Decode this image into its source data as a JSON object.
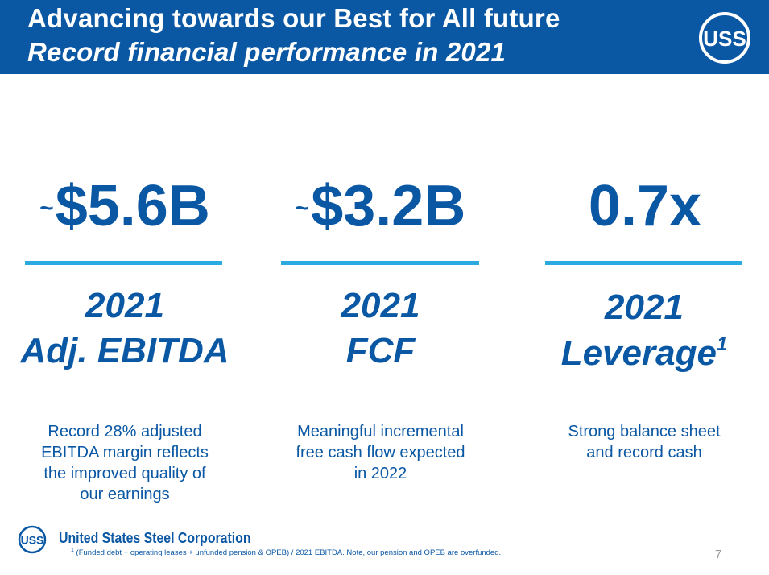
{
  "header": {
    "title_line1": "Advancing towards our Best for All future",
    "title_line2": "Record financial performance in 2021",
    "logo_text": "USS"
  },
  "metrics": [
    {
      "prefix": "~",
      "value": "$5.6B",
      "year": "2021",
      "label": "Adj. EBITDA",
      "footnote_ref": "",
      "description_lines": [
        "Record 28% adjusted",
        "EBITDA margin reflects",
        "the improved quality of",
        "our earnings"
      ]
    },
    {
      "prefix": "~",
      "value": "$3.2B",
      "year": "2021",
      "label": "FCF",
      "footnote_ref": "",
      "description_lines": [
        "Meaningful incremental",
        "free cash flow expected",
        "in 2022"
      ]
    },
    {
      "prefix": "",
      "value": "0.7x",
      "year": "2021",
      "label": "Leverage",
      "footnote_ref": "1",
      "description_lines": [
        "Strong balance sheet",
        "and record cash"
      ]
    }
  ],
  "footer": {
    "logo_text": "USS",
    "company": "United States Steel Corporation",
    "footnote_mark": "1",
    "footnote": " (Funded debt + operating leases + unfunded pension & OPEB) / 2021 EBITDA.  Note, our pension and OPEB are overfunded.",
    "page_number": "7"
  },
  "colors": {
    "brand_blue": "#0a57a4",
    "accent_cyan": "#29abe2",
    "page_number_gray": "#9a9a9a"
  }
}
